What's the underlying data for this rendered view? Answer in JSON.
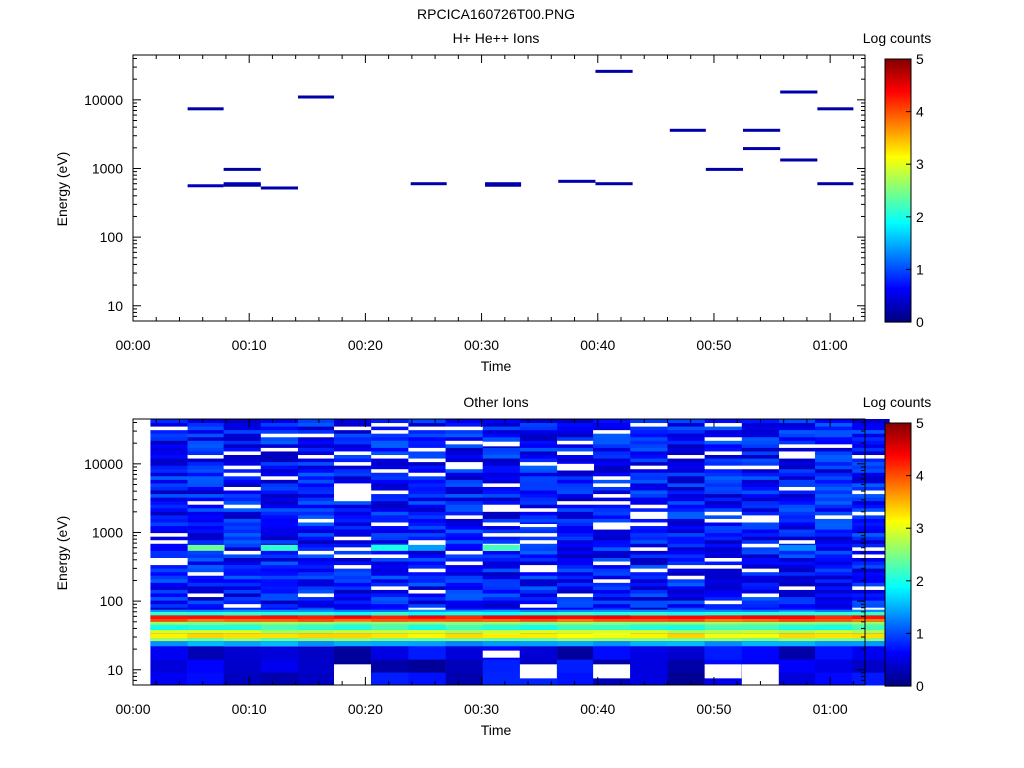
{
  "page_title": "RPCICA160726T00.PNG",
  "chart_data": [
    {
      "type": "heatmap",
      "title": "H+ He++ Ions",
      "xlabel": "Time",
      "ylabel": "Energy (eV)",
      "x_ticks": [
        "00:00",
        "00:10",
        "00:20",
        "00:30",
        "00:40",
        "00:50",
        "01:00"
      ],
      "x_range_min": [
        0,
        63
      ],
      "y_scale": "log",
      "y_ticks": [
        "10",
        "100",
        "1000",
        "10000"
      ],
      "y_range": [
        6,
        45000
      ],
      "colorbar_label": "Log counts",
      "colorbar_ticks": [
        "0",
        "1",
        "2",
        "3",
        "4",
        "5"
      ],
      "colorbar_range": [
        0,
        5
      ],
      "grid": false,
      "segments": [
        {
          "t0": 4.7,
          "t1": 7.8,
          "energy": 7400,
          "log_counts": 0.2
        },
        {
          "t0": 4.7,
          "t1": 7.8,
          "energy": 560,
          "log_counts": 0.3
        },
        {
          "t0": 7.8,
          "t1": 11.0,
          "energy": 970,
          "log_counts": 0.2
        },
        {
          "t0": 7.8,
          "t1": 11.0,
          "energy": 600,
          "log_counts": 0.3
        },
        {
          "t0": 7.8,
          "t1": 11.0,
          "energy": 570,
          "log_counts": 0.2
        },
        {
          "t0": 11.0,
          "t1": 14.2,
          "energy": 520,
          "log_counts": 0.2
        },
        {
          "t0": 14.2,
          "t1": 17.3,
          "energy": 11000,
          "log_counts": 0.2
        },
        {
          "t0": 23.9,
          "t1": 27.0,
          "energy": 600,
          "log_counts": 0.2
        },
        {
          "t0": 30.3,
          "t1": 33.4,
          "energy": 600,
          "log_counts": 0.2
        },
        {
          "t0": 30.3,
          "t1": 33.4,
          "energy": 570,
          "log_counts": 0.2
        },
        {
          "t0": 36.6,
          "t1": 39.8,
          "energy": 650,
          "log_counts": 0.2
        },
        {
          "t0": 39.8,
          "t1": 43.0,
          "energy": 26000,
          "log_counts": 0.2
        },
        {
          "t0": 39.8,
          "t1": 43.0,
          "energy": 600,
          "log_counts": 0.2
        },
        {
          "t0": 46.2,
          "t1": 49.3,
          "energy": 3600,
          "log_counts": 0.2
        },
        {
          "t0": 49.3,
          "t1": 52.5,
          "energy": 970,
          "log_counts": 0.2
        },
        {
          "t0": 52.5,
          "t1": 55.7,
          "energy": 3600,
          "log_counts": 0.2
        },
        {
          "t0": 52.5,
          "t1": 55.7,
          "energy": 1950,
          "log_counts": 0.2
        },
        {
          "t0": 55.7,
          "t1": 58.9,
          "energy": 13000,
          "log_counts": 0.2
        },
        {
          "t0": 55.7,
          "t1": 58.9,
          "energy": 1330,
          "log_counts": 0.2
        },
        {
          "t0": 58.9,
          "t1": 62.0,
          "energy": 7400,
          "log_counts": 0.2
        },
        {
          "t0": 58.9,
          "t1": 62.0,
          "energy": 600,
          "log_counts": 0.2
        }
      ]
    },
    {
      "type": "heatmap",
      "title": "Other Ions",
      "xlabel": "Time",
      "ylabel": "Energy (eV)",
      "x_ticks": [
        "00:00",
        "00:10",
        "00:20",
        "00:30",
        "00:40",
        "00:50",
        "01:00"
      ],
      "x_range_min": [
        0,
        63
      ],
      "y_scale": "log",
      "y_ticks": [
        "10",
        "100",
        "1000",
        "10000"
      ],
      "y_range": [
        6,
        45000
      ],
      "colorbar_label": "Log counts",
      "colorbar_ticks": [
        "0",
        "1",
        "2",
        "3",
        "4",
        "5"
      ],
      "colorbar_range": [
        0,
        5
      ],
      "grid": false,
      "time_bins_min": [
        1.5,
        4.7,
        7.8,
        11.0,
        14.2,
        17.3,
        20.5,
        23.7,
        26.9,
        30.1,
        33.3,
        36.5,
        39.6,
        42.8,
        46.0,
        49.2,
        52.4,
        55.6,
        58.7,
        61.9
      ],
      "energy_bands": [
        {
          "e_low": 55,
          "e_high": 62,
          "log_counts": 4.3
        },
        {
          "e_low": 50,
          "e_high": 55,
          "log_counts": 3.9
        },
        {
          "e_low": 45,
          "e_high": 50,
          "log_counts": 2.6
        },
        {
          "e_low": 38,
          "e_high": 45,
          "log_counts": 2.1
        },
        {
          "e_low": 34,
          "e_high": 38,
          "log_counts": 2.8
        },
        {
          "e_low": 29,
          "e_high": 34,
          "log_counts": 3.2
        },
        {
          "e_low": 26,
          "e_high": 29,
          "log_counts": 2.5
        },
        {
          "e_low": 22,
          "e_high": 26,
          "log_counts": 1.4
        },
        {
          "e_low": 62,
          "e_high": 70,
          "log_counts": 2.0
        },
        {
          "e_low": 70,
          "e_high": 75,
          "log_counts": 1.3
        }
      ],
      "bright_peaks": [
        {
          "bin": 1,
          "e_low": 540,
          "e_high": 660,
          "log_counts": 2.4
        },
        {
          "bin": 3,
          "e_low": 540,
          "e_high": 660,
          "log_counts": 2.1
        },
        {
          "bin": 6,
          "e_low": 540,
          "e_high": 660,
          "log_counts": 2.0
        },
        {
          "bin": 9,
          "e_low": 540,
          "e_high": 660,
          "log_counts": 2.2
        },
        {
          "bin": 7,
          "e_low": 540,
          "e_high": 660,
          "log_counts": 1.4
        },
        {
          "bin": 17,
          "e_low": 540,
          "e_high": 660,
          "log_counts": 1.3
        }
      ],
      "missing_cells": [
        {
          "bin": 5,
          "e_low": 6,
          "e_high": 12
        },
        {
          "bin": 9,
          "e_low": 15,
          "e_high": 19
        },
        {
          "bin": 10,
          "e_low": 7.5,
          "e_high": 12
        },
        {
          "bin": 12,
          "e_low": 7.5,
          "e_high": 12
        },
        {
          "bin": 15,
          "e_low": 7.5,
          "e_high": 12
        },
        {
          "bin": 16,
          "e_low": 6,
          "e_high": 12
        },
        {
          "bin": 9,
          "e_low": 18000,
          "e_high": 21000
        },
        {
          "bin": 10,
          "e_low": 1200,
          "e_high": 1330
        },
        {
          "bin": 11,
          "e_low": 8000,
          "e_high": 9000
        },
        {
          "bin": 11,
          "e_low": 9000,
          "e_high": 10000
        }
      ],
      "background_log_counts": [
        0.3,
        1.1
      ]
    }
  ]
}
